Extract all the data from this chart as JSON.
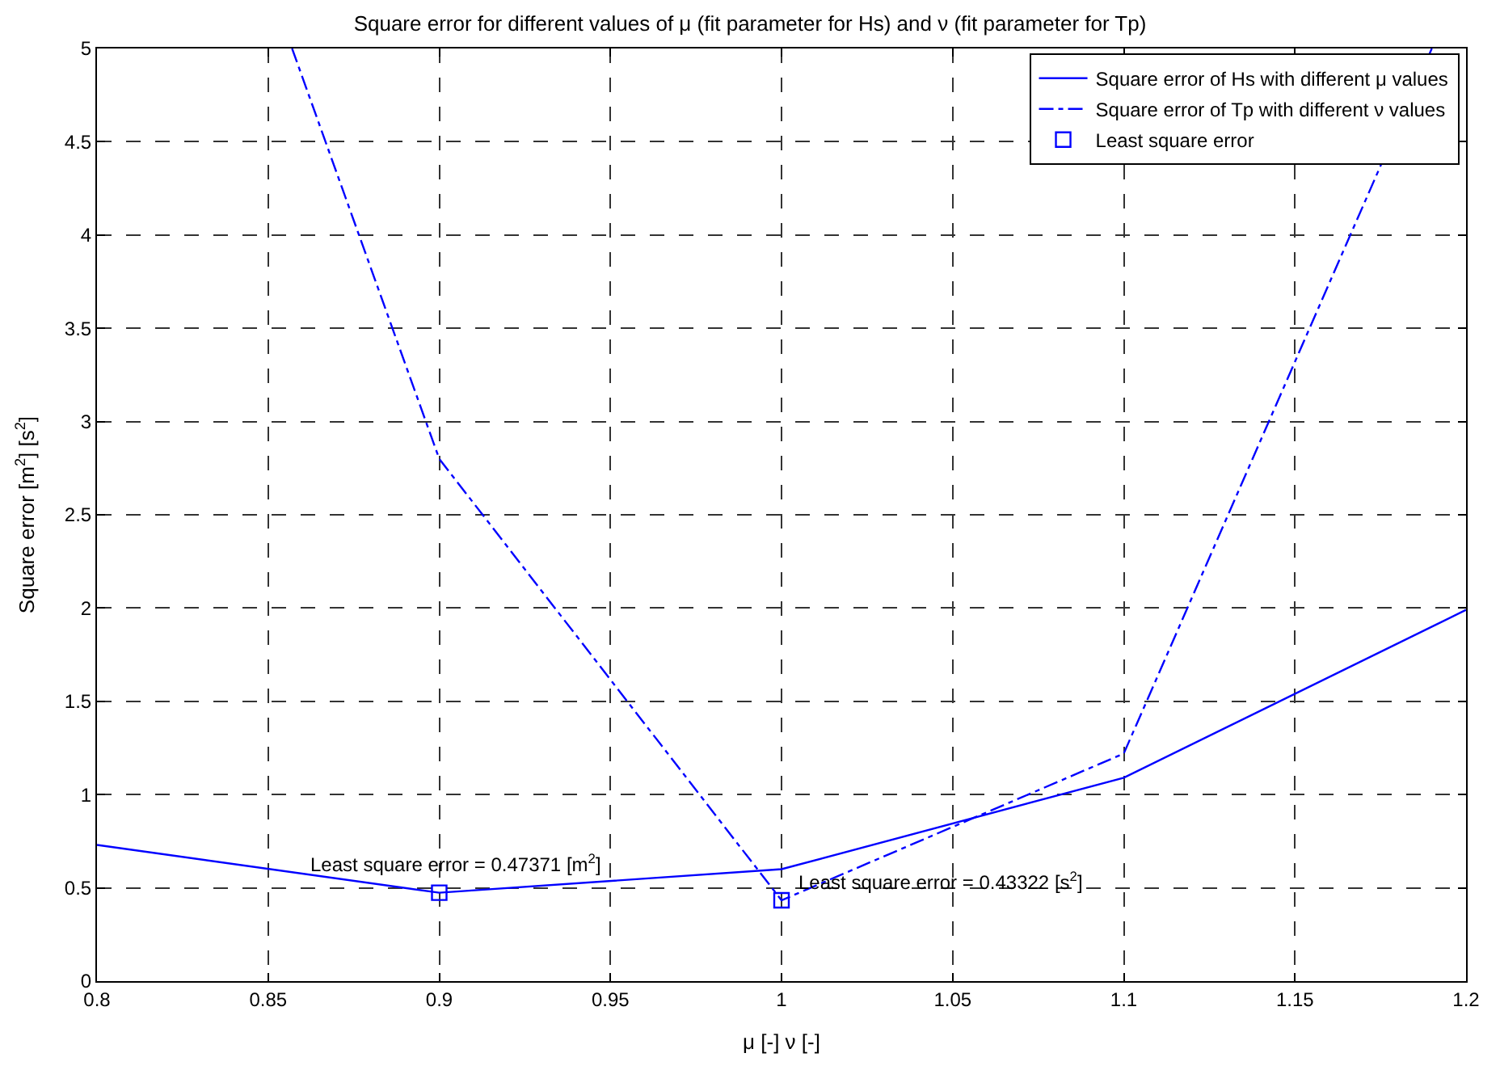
{
  "chart_data": {
    "type": "line",
    "title": "Square error for different values of μ (fit parameter for Hs) and ν (fit parameter for Tp)",
    "xlabel": "μ [-] ν [-]",
    "ylabel": "Square error [m$^{2}$] [s$^{2}$]",
    "xlim": [
      0.8,
      1.2
    ],
    "xticks": [
      0.8,
      0.85,
      0.9,
      0.95,
      1,
      1.05,
      1.1,
      1.15,
      1.2
    ],
    "ylim": [
      0,
      5
    ],
    "yticks": [
      0,
      0.5,
      1,
      1.5,
      2,
      2.5,
      3,
      3.5,
      4,
      4.5,
      5
    ],
    "grid": true,
    "legend": "top right",
    "series": [
      {
        "name": "Square error of Hs with different μ values",
        "color": "#0000ff",
        "line_style": "solid",
        "marker": "none",
        "x": [
          0.8,
          0.9,
          1.0,
          1.1,
          1.2
        ],
        "values": [
          0.73,
          0.47371,
          0.6,
          1.09,
          1.99
        ]
      },
      {
        "name": "Square error of Tp with different ν values",
        "color": "#0000ff",
        "line_style": "dashed",
        "marker": "none",
        "x": [
          0.857,
          0.9,
          1.0,
          1.1,
          1.19
        ],
        "values": [
          5,
          2.8,
          0.43322,
          1.22,
          5
        ]
      },
      {
        "name": "Least square error",
        "type": "scatter",
        "color": "#0000ff",
        "marker": "square",
        "x": [
          0.9,
          1.0
        ],
        "values": [
          0.47371,
          0.43322
        ]
      }
    ],
    "annotations": [
      {
        "text": "Least square error = 0.47371 [m$^{2}$]",
        "x": 0.9,
        "y": 0.47371
      },
      {
        "text": "Least square error = 0.43322 [s$^{2}$]",
        "x": 1.0,
        "y": 0.43322
      }
    ]
  }
}
